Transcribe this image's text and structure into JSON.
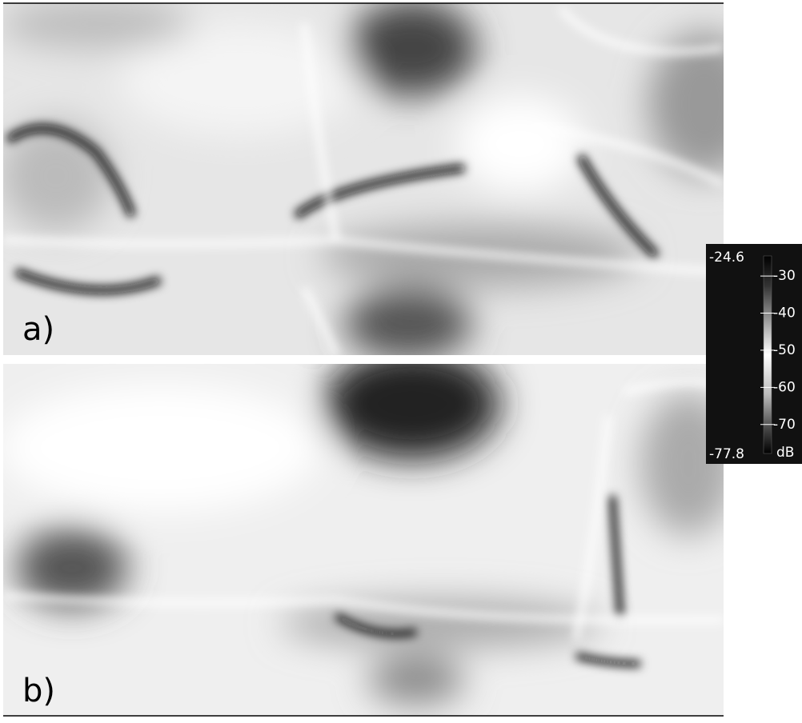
{
  "panels": [
    {
      "label": "a)"
    },
    {
      "label": "b)"
    }
  ],
  "colorbar": {
    "max": -24.6,
    "min": -77.8,
    "ticks": [
      -30,
      -40,
      -50,
      -60,
      -70
    ],
    "unit": "dB"
  }
}
